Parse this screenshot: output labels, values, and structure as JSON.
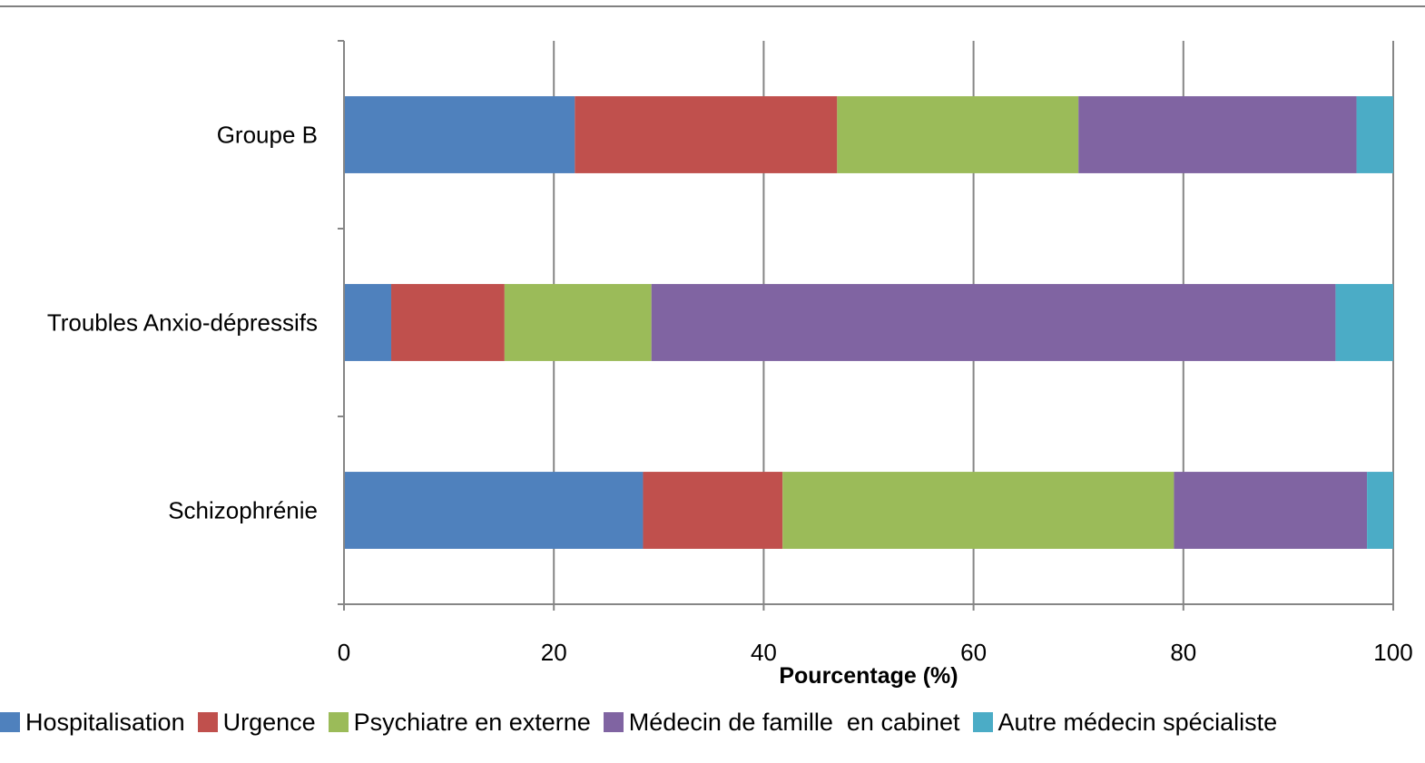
{
  "chart_data": {
    "type": "bar",
    "orientation": "horizontal",
    "stacked": true,
    "title": "",
    "xlabel": "Pourcentage (%)",
    "ylabel": "",
    "xlim": [
      0,
      100
    ],
    "xticks": [
      "0",
      "20",
      "40",
      "60",
      "80",
      "100"
    ],
    "grid": "vertical",
    "legend_position": "bottom",
    "categories": [
      "Schizophrénie",
      "Troubles Anxio-dépressifs",
      "Groupe B"
    ],
    "series": [
      {
        "name": "Hospitalisation",
        "color": "#4F81BD",
        "values": [
          28.5,
          4.5,
          22.0
        ]
      },
      {
        "name": "Urgence",
        "color": "#C0504D",
        "values": [
          13.3,
          10.8,
          25.0
        ]
      },
      {
        "name": "Psychiatre en externe",
        "color": "#9BBB59",
        "values": [
          37.3,
          14.0,
          23.0
        ]
      },
      {
        "name": "Médecin de famille  en cabinet",
        "color": "#8064A2",
        "values": [
          18.4,
          65.2,
          26.5
        ]
      },
      {
        "name": "Autre médecin spécialiste",
        "color": "#4BACC6",
        "values": [
          2.5,
          5.5,
          3.5
        ]
      }
    ]
  }
}
